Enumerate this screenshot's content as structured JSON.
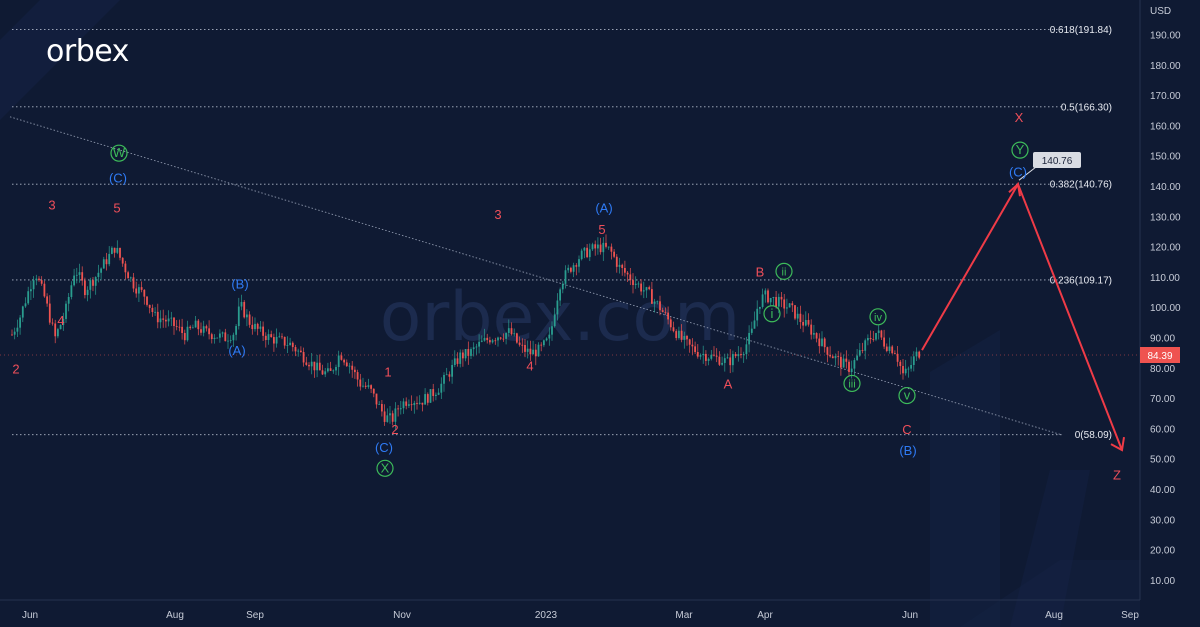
{
  "brand": {
    "name": "orbex",
    "watermark": "orbex.com"
  },
  "colors": {
    "background": "#0f1a33",
    "red": "#ef4f5a",
    "blue": "#2f7bf5",
    "green": "#3dbb5a",
    "candle_up": "#2a9d8f",
    "candle_down": "#ef5350"
  },
  "chart_data": {
    "type": "candlestick",
    "currency": "USD",
    "price_axis": {
      "min": 10,
      "max": 190,
      "step": 10,
      "ticks": [
        "190.00",
        "180.00",
        "170.00",
        "160.00",
        "150.00",
        "140.00",
        "130.00",
        "120.00",
        "110.00",
        "100.00",
        "90.00",
        "80.00",
        "70.00",
        "60.00",
        "50.00",
        "40.00",
        "30.00",
        "20.00",
        "10.00"
      ]
    },
    "time_axis": [
      "Jun",
      "Aug",
      "Sep",
      "Nov",
      "2023",
      "Mar",
      "Apr",
      "Jun",
      "Aug",
      "Sep"
    ],
    "current_price": "84.39",
    "target_price": "140.76",
    "fibonacci": [
      {
        "label": "0.618(191.84)",
        "value": 191.84
      },
      {
        "label": "0.5(166.30)",
        "value": 166.3
      },
      {
        "label": "0.382(140.76)",
        "value": 140.76
      },
      {
        "label": "0.236(109.17)",
        "value": 109.17
      },
      {
        "label": "0(58.09)",
        "value": 58.09
      }
    ],
    "price_path": [
      [
        0,
        88
      ],
      [
        5,
        86
      ],
      [
        20,
        97
      ],
      [
        35,
        112
      ],
      [
        45,
        103
      ],
      [
        55,
        90
      ],
      [
        65,
        98
      ],
      [
        75,
        113
      ],
      [
        85,
        106
      ],
      [
        95,
        110
      ],
      [
        105,
        115
      ],
      [
        115,
        120
      ],
      [
        125,
        113
      ],
      [
        135,
        107
      ],
      [
        145,
        104
      ],
      [
        155,
        97
      ],
      [
        165,
        96
      ],
      [
        175,
        94
      ],
      [
        185,
        91
      ],
      [
        195,
        94
      ],
      [
        205,
        92
      ],
      [
        215,
        91
      ],
      [
        225,
        90
      ],
      [
        235,
        92
      ],
      [
        240,
        101
      ],
      [
        250,
        95
      ],
      [
        260,
        92
      ],
      [
        270,
        90
      ],
      [
        280,
        89
      ],
      [
        290,
        88
      ],
      [
        300,
        85
      ],
      [
        310,
        82
      ],
      [
        320,
        79
      ],
      [
        330,
        78
      ],
      [
        340,
        85
      ],
      [
        350,
        81
      ],
      [
        360,
        75
      ],
      [
        370,
        73
      ],
      [
        378,
        68
      ],
      [
        385,
        64
      ],
      [
        392,
        63
      ],
      [
        400,
        68
      ],
      [
        410,
        70
      ],
      [
        420,
        69
      ],
      [
        430,
        71
      ],
      [
        440,
        74
      ],
      [
        450,
        79
      ],
      [
        460,
        84
      ],
      [
        470,
        85
      ],
      [
        480,
        88
      ],
      [
        490,
        90
      ],
      [
        500,
        91
      ],
      [
        510,
        92
      ],
      [
        520,
        87
      ],
      [
        530,
        85
      ],
      [
        540,
        86
      ],
      [
        550,
        90
      ],
      [
        555,
        100
      ],
      [
        560,
        108
      ],
      [
        570,
        113
      ],
      [
        580,
        117
      ],
      [
        590,
        119
      ],
      [
        600,
        120
      ],
      [
        610,
        119
      ],
      [
        620,
        113
      ],
      [
        630,
        110
      ],
      [
        640,
        107
      ],
      [
        650,
        104
      ],
      [
        660,
        100
      ],
      [
        670,
        95
      ],
      [
        680,
        90
      ],
      [
        690,
        87
      ],
      [
        700,
        85
      ],
      [
        710,
        84
      ],
      [
        720,
        83
      ],
      [
        728,
        82
      ],
      [
        735,
        84
      ],
      [
        745,
        87
      ],
      [
        752,
        92
      ],
      [
        758,
        101
      ],
      [
        764,
        104
      ],
      [
        772,
        103
      ],
      [
        782,
        101
      ],
      [
        790,
        100
      ],
      [
        800,
        96
      ],
      [
        810,
        93
      ],
      [
        820,
        89
      ],
      [
        830,
        85
      ],
      [
        840,
        82
      ],
      [
        850,
        80
      ],
      [
        860,
        85
      ],
      [
        870,
        90
      ],
      [
        877,
        92
      ],
      [
        885,
        88
      ],
      [
        895,
        86
      ],
      [
        903,
        78
      ],
      [
        908,
        79
      ],
      [
        915,
        84
      ],
      [
        922,
        86
      ]
    ],
    "waves": {
      "red": [
        {
          "t": "2",
          "x": 16,
          "v": 80
        },
        {
          "t": "3",
          "x": 52,
          "v": 134
        },
        {
          "t": "4",
          "x": 61,
          "v": 96
        },
        {
          "t": "5",
          "x": 117,
          "v": 133
        },
        {
          "t": "1",
          "x": 388,
          "v": 79
        },
        {
          "t": "2",
          "x": 395,
          "v": 60
        },
        {
          "t": "3",
          "x": 498,
          "v": 131
        },
        {
          "t": "4",
          "x": 530,
          "v": 81
        },
        {
          "t": "5",
          "x": 602,
          "v": 126
        },
        {
          "t": "A",
          "x": 728,
          "v": 75
        },
        {
          "t": "B",
          "x": 760,
          "v": 112
        },
        {
          "t": "C",
          "x": 907,
          "v": 60
        },
        {
          "t": "X",
          "x": 1019,
          "v": 163
        },
        {
          "t": "Z",
          "x": 1117,
          "v": 45
        }
      ],
      "blue": [
        {
          "t": "(C)",
          "x": 118,
          "v": 143
        },
        {
          "t": "(B)",
          "x": 240,
          "v": 108
        },
        {
          "t": "(A)",
          "x": 237,
          "v": 86
        },
        {
          "t": "(C)",
          "x": 384,
          "v": 54
        },
        {
          "t": "(A)",
          "x": 604,
          "v": 133
        },
        {
          "t": "(B)",
          "x": 908,
          "v": 53
        },
        {
          "t": "(C)",
          "x": 1018,
          "v": 145
        }
      ],
      "green_circled": [
        {
          "t": "W",
          "x": 119,
          "v": 151
        },
        {
          "t": "X",
          "x": 385,
          "v": 47
        },
        {
          "t": "Y",
          "x": 1020,
          "v": 152
        },
        {
          "t": "i",
          "x": 772,
          "v": 98
        },
        {
          "t": "ii",
          "x": 784,
          "v": 112
        },
        {
          "t": "iii",
          "x": 852,
          "v": 75
        },
        {
          "t": "iv",
          "x": 878,
          "v": 97
        },
        {
          "t": "v",
          "x": 907,
          "v": 71
        }
      ]
    },
    "forecast_path": [
      [
        922,
        86
      ],
      [
        1018,
        140.76
      ],
      [
        1122,
        53
      ]
    ],
    "trendline": [
      [
        10,
        163
      ],
      [
        1062,
        58
      ]
    ]
  }
}
